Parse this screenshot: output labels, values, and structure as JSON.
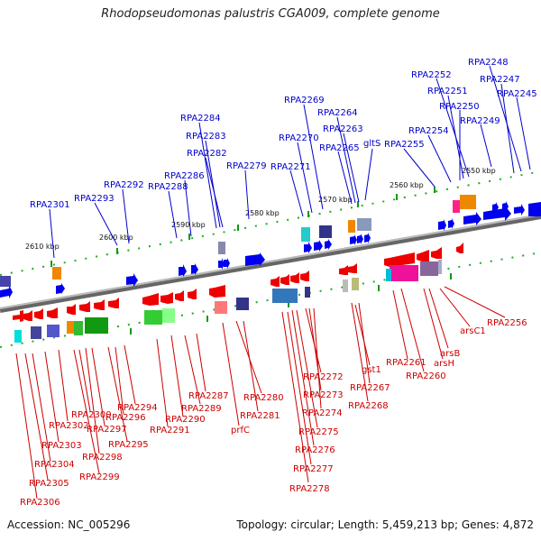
{
  "title": "Rhodopseudomonas palustris CGA009, complete genome",
  "accession": "Accession: NC_005296",
  "summary": "Topology: circular; Length: 5,459,213 bp; Genes: 4,872",
  "colors": {
    "forward": "#0000ee",
    "reverse": "#ee0000",
    "label_forward": "#0000cc",
    "label_reverse": "#cc0000",
    "backbone": "#888888",
    "tick": "#22aa22"
  },
  "ticks": [
    "2550 kbp",
    "2560 kbp",
    "2570 kbp",
    "2580 kbp",
    "2590 kbp",
    "2600 kbp",
    "2610 kbp"
  ],
  "forward_labels": [
    "RPA2248",
    "RPA2252",
    "RPA2247",
    "RPA2251",
    "RPA2245",
    "RPA2250",
    "RPA2249",
    "RPA2254",
    "RPA2255",
    "RPA2269",
    "RPA2264",
    "RPA2263",
    "RPA2270",
    "RPA2265",
    "gltS",
    "RPA2271",
    "RPA2284",
    "RPA2283",
    "RPA2282",
    "RPA2279",
    "RPA2286",
    "RPA2288",
    "RPA2292",
    "RPA2293",
    "RPA2301"
  ],
  "reverse_labels": [
    "RPA2256",
    "arsC1",
    "arsB",
    "arsH",
    "RPA2261",
    "RPA2260",
    "gst1",
    "RPA2267",
    "RPA2268",
    "RPA2272",
    "RPA2273",
    "RPA2274",
    "RPA2275",
    "RPA2276",
    "RPA2277",
    "RPA2278",
    "RPA2280",
    "RPA2281",
    "prfC",
    "RPA2287",
    "RPA2289",
    "RPA2290",
    "RPA2291",
    "RPA2294",
    "RPA2296",
    "RPA2295",
    "RPA2297",
    "RPA2300",
    "RPA2302",
    "RPA2298",
    "RPA2299",
    "RPA2303",
    "RPA2304",
    "RPA2305",
    "RPA2306"
  ]
}
